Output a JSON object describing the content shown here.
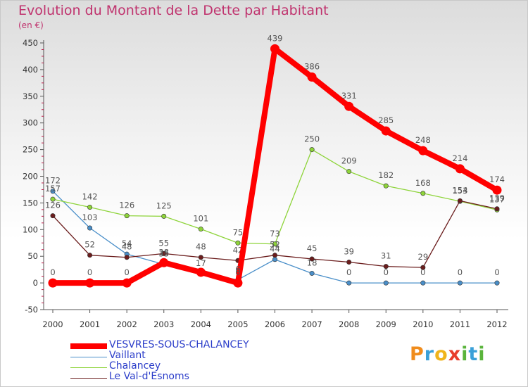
{
  "chart_data": {
    "type": "line",
    "title": "Evolution du Montant de la Dette par Habitant",
    "ylabel": "(en €)",
    "xlabel": "",
    "categories": [
      "2000",
      "2001",
      "2002",
      "2003",
      "2004",
      "2005",
      "2006",
      "2007",
      "2008",
      "2009",
      "2010",
      "2011",
      "2012"
    ],
    "ylim": [
      -50,
      450
    ],
    "yticks": [
      -50,
      0,
      50,
      100,
      150,
      200,
      250,
      300,
      350,
      400,
      450
    ],
    "grid": false,
    "legend_position": "bottom-left",
    "series": [
      {
        "name": "Vaillant",
        "color": "#4a8fc9",
        "values": [
          172,
          103,
          54,
          35,
          17,
          6,
          44,
          18,
          0,
          0,
          0,
          0,
          0
        ],
        "labels": [
          "172",
          "103",
          "54",
          "",
          "17",
          "",
          "",
          "18",
          "0",
          "0",
          "0",
          "0",
          "0"
        ]
      },
      {
        "name": "Chalancey",
        "color": "#8ed43a",
        "values": [
          157,
          142,
          126,
          125,
          101,
          75,
          73,
          250,
          209,
          182,
          168,
          153,
          137
        ],
        "labels": [
          "157",
          "142",
          "126",
          "125",
          "101",
          "75",
          "73",
          "250",
          "209",
          "182",
          "168",
          "153",
          "137"
        ]
      },
      {
        "name": "Le Val-d'Esnoms",
        "color": "#6b1d1d",
        "values": [
          126,
          52,
          48,
          55,
          48,
          42,
          52,
          45,
          39,
          31,
          29,
          154,
          139
        ],
        "labels": [
          "126",
          "52",
          "48",
          "55",
          "48",
          "42",
          "52",
          "45",
          "39",
          "31",
          "29",
          "154",
          "139"
        ]
      },
      {
        "name": "VESVRES-SOUS-CHALANCEY",
        "color": "#ff0000",
        "values": [
          0,
          0,
          0,
          38,
          20,
          0,
          439,
          386,
          331,
          285,
          248,
          214,
          174
        ],
        "labels": [
          "0",
          "0",
          "0",
          "38",
          "",
          "0",
          "439",
          "386",
          "331",
          "285",
          "248",
          "214",
          "174"
        ]
      }
    ],
    "extra_labels": [
      {
        "text": "35",
        "x": "2003",
        "y": 35
      },
      {
        "text": "6",
        "x": "2005",
        "y": 6
      },
      {
        "text": "44",
        "x": "2006",
        "y": 44
      }
    ]
  },
  "legend": [
    {
      "name": "VESVRES-SOUS-CHALANCEY",
      "color": "#ff0000",
      "thickness": 8,
      "text_color": "#2a3cc9"
    },
    {
      "name": "Vaillant",
      "color": "#4a8fc9",
      "thickness": 1,
      "text_color": "#2a3cc9"
    },
    {
      "name": "Chalancey",
      "color": "#8ed43a",
      "thickness": 1,
      "text_color": "#2a3cc9"
    },
    {
      "name": "Le Val-d'Esnoms",
      "color": "#6b1d1d",
      "thickness": 1,
      "text_color": "#2a3cc9"
    }
  ],
  "logo": {
    "letters": [
      {
        "ch": "P",
        "color": "#f08c1c"
      },
      {
        "ch": "r",
        "color": "#3aa0d8"
      },
      {
        "ch": "o",
        "color": "#f0b41c"
      },
      {
        "ch": "x",
        "color": "#e83c2c"
      },
      {
        "ch": "i",
        "color": "#5ab43c"
      },
      {
        "ch": "t",
        "color": "#3aa0d8"
      },
      {
        "ch": "i",
        "color": "#5ab43c"
      }
    ]
  }
}
